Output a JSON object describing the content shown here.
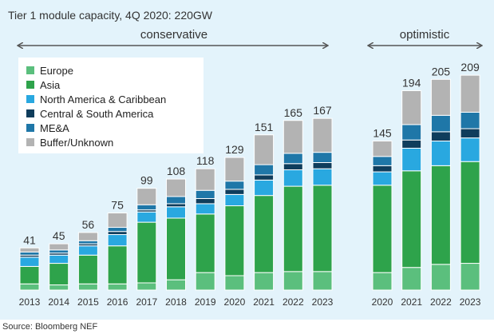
{
  "source": "Source: Bloomberg NEF",
  "chart_data": {
    "type": "bar",
    "stacked": true,
    "title": "Tier 1 module capacity, 4Q 2020: 220GW",
    "groups": [
      {
        "label": "conservative",
        "categories": [
          "2013",
          "2014",
          "2015",
          "2016",
          "2017",
          "2018",
          "2019",
          "2020",
          "2021",
          "2022",
          "2023"
        ]
      },
      {
        "label": "optimistic",
        "categories": [
          "2020",
          "2021",
          "2022",
          "2023"
        ]
      }
    ],
    "categories": [
      "2013",
      "2014",
      "2015",
      "2016",
      "2017",
      "2018",
      "2019",
      "2020",
      "2021",
      "2022",
      "2023",
      "2020",
      "2021",
      "2022",
      "2023"
    ],
    "totals": [
      "41",
      "45",
      "56",
      "75",
      "99",
      "108",
      "118",
      "129",
      "151",
      "165",
      "167",
      "145",
      "194",
      "205",
      "209"
    ],
    "legend": [
      "Europe",
      "Asia",
      "North America & Caribbean",
      "Central & South America",
      "ME&A",
      "Buffer/Unknown"
    ],
    "colors": [
      "#5bbf7d",
      "#2ea34b",
      "#29a8e0",
      "#0f3d5c",
      "#1f77a8",
      "#b3b3b3"
    ],
    "series": [
      {
        "name": "Europe",
        "values": [
          6,
          5,
          6,
          6,
          7,
          10,
          17,
          14,
          17,
          18,
          18,
          17,
          22,
          25,
          26
        ]
      },
      {
        "name": "Asia",
        "values": [
          17,
          21,
          28,
          37,
          59,
          60,
          57,
          68,
          75,
          83,
          84,
          85,
          94,
          96,
          99
        ]
      },
      {
        "name": "North America & Caribbean",
        "values": [
          9,
          8,
          9,
          11,
          10,
          11,
          10,
          11,
          15,
          16,
          16,
          13,
          22,
          24,
          23
        ]
      },
      {
        "name": "Central & South America",
        "values": [
          2,
          2,
          2,
          3,
          2,
          3,
          5,
          5,
          5,
          6,
          6,
          6,
          8,
          9,
          9
        ]
      },
      {
        "name": "ME&A",
        "values": [
          3,
          3,
          3,
          4,
          5,
          7,
          8,
          8,
          10,
          10,
          10,
          9,
          15,
          16,
          16
        ]
      },
      {
        "name": "Buffer/Unknown",
        "values": [
          4,
          6,
          8,
          14,
          16,
          17,
          21,
          23,
          29,
          32,
          33,
          15,
          33,
          35,
          36
        ]
      }
    ],
    "ylim": [
      0,
      220
    ],
    "grid": false,
    "legend_position": "top-left"
  }
}
